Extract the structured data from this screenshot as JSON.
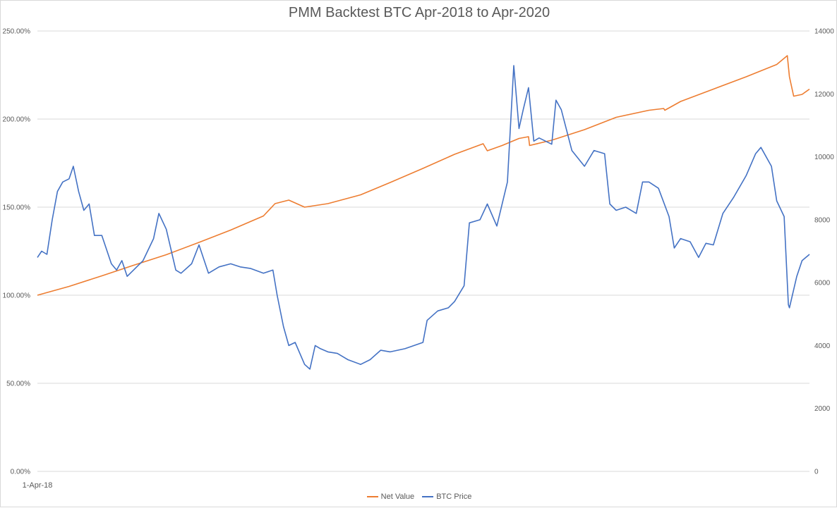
{
  "chart_data": {
    "type": "line",
    "title": "PMM Backtest BTC Apr-2018 to Apr-2020",
    "x_label_shown": "1-Apr-18",
    "x_range": [
      "2018-04-01",
      "2020-04-01"
    ],
    "y_left": {
      "range": [
        0,
        2.5
      ],
      "ticks": [
        "0.00%",
        "50.00%",
        "100.00%",
        "150.00%",
        "200.00%",
        "250.00%"
      ]
    },
    "y_right": {
      "range": [
        0,
        14000
      ],
      "ticks": [
        "0",
        "2000",
        "4000",
        "6000",
        "8000",
        "10000",
        "12000",
        "14000"
      ]
    },
    "grid": "horizontal",
    "legend": "bottom",
    "colors": {
      "net_value": "#ed7d31",
      "btc_price": "#4472c4"
    },
    "series": [
      {
        "name": "Net Value",
        "axis": "left",
        "x": [
          "2018-04-01",
          "2018-05-01",
          "2018-06-01",
          "2018-07-01",
          "2018-08-01",
          "2018-09-01",
          "2018-10-01",
          "2018-11-01",
          "2018-11-12",
          "2018-11-25",
          "2018-12-10",
          "2019-01-01",
          "2019-02-01",
          "2019-03-01",
          "2019-04-01",
          "2019-05-01",
          "2019-05-28",
          "2019-06-01",
          "2019-06-15",
          "2019-07-01",
          "2019-07-10",
          "2019-07-11",
          "2019-08-01",
          "2019-09-01",
          "2019-10-01",
          "2019-11-01",
          "2019-11-15",
          "2019-11-16",
          "2019-12-01",
          "2020-01-01",
          "2020-02-01",
          "2020-03-01",
          "2020-03-11",
          "2020-03-13",
          "2020-03-17",
          "2020-03-25",
          "2020-04-01"
        ],
        "values": [
          1.0,
          1.05,
          1.11,
          1.17,
          1.23,
          1.3,
          1.37,
          1.45,
          1.52,
          1.54,
          1.5,
          1.52,
          1.57,
          1.64,
          1.72,
          1.8,
          1.86,
          1.82,
          1.85,
          1.89,
          1.9,
          1.85,
          1.88,
          1.94,
          2.01,
          2.05,
          2.06,
          2.05,
          2.1,
          2.17,
          2.24,
          2.31,
          2.36,
          2.24,
          2.13,
          2.14,
          2.17
        ]
      },
      {
        "name": "BTC Price",
        "axis": "right",
        "x": [
          "2018-04-01",
          "2018-04-05",
          "2018-04-10",
          "2018-04-15",
          "2018-04-20",
          "2018-04-25",
          "2018-05-01",
          "2018-05-05",
          "2018-05-10",
          "2018-05-15",
          "2018-05-20",
          "2018-05-25",
          "2018-06-01",
          "2018-06-10",
          "2018-06-15",
          "2018-06-20",
          "2018-06-25",
          "2018-07-01",
          "2018-07-10",
          "2018-07-20",
          "2018-07-25",
          "2018-08-01",
          "2018-08-10",
          "2018-08-15",
          "2018-08-25",
          "2018-09-01",
          "2018-09-10",
          "2018-09-20",
          "2018-10-01",
          "2018-10-10",
          "2018-10-20",
          "2018-11-01",
          "2018-11-10",
          "2018-11-14",
          "2018-11-20",
          "2018-11-25",
          "2018-12-01",
          "2018-12-10",
          "2018-12-15",
          "2018-12-20",
          "2018-12-25",
          "2019-01-01",
          "2019-01-10",
          "2019-01-20",
          "2019-02-01",
          "2019-02-10",
          "2019-02-20",
          "2019-03-01",
          "2019-03-15",
          "2019-04-01",
          "2019-04-05",
          "2019-04-15",
          "2019-04-25",
          "2019-05-01",
          "2019-05-10",
          "2019-05-15",
          "2019-05-25",
          "2019-06-01",
          "2019-06-10",
          "2019-06-20",
          "2019-06-26",
          "2019-07-01",
          "2019-07-05",
          "2019-07-10",
          "2019-07-15",
          "2019-07-20",
          "2019-08-01",
          "2019-08-05",
          "2019-08-10",
          "2019-08-20",
          "2019-09-01",
          "2019-09-10",
          "2019-09-20",
          "2019-09-25",
          "2019-10-01",
          "2019-10-10",
          "2019-10-20",
          "2019-10-26",
          "2019-11-01",
          "2019-11-10",
          "2019-11-20",
          "2019-11-25",
          "2019-12-01",
          "2019-12-10",
          "2019-12-18",
          "2019-12-25",
          "2020-01-01",
          "2020-01-10",
          "2020-01-20",
          "2020-02-01",
          "2020-02-10",
          "2020-02-15",
          "2020-02-25",
          "2020-03-01",
          "2020-03-08",
          "2020-03-12",
          "2020-03-13",
          "2020-03-20",
          "2020-03-25",
          "2020-04-01"
        ],
        "values": [
          6800,
          7000,
          6900,
          8000,
          8900,
          9200,
          9300,
          9700,
          8900,
          8300,
          8500,
          7500,
          7500,
          6600,
          6400,
          6700,
          6200,
          6400,
          6700,
          7400,
          8200,
          7700,
          6400,
          6300,
          6600,
          7200,
          6300,
          6500,
          6600,
          6500,
          6450,
          6300,
          6400,
          5600,
          4600,
          4000,
          4100,
          3400,
          3250,
          4000,
          3900,
          3800,
          3750,
          3550,
          3400,
          3550,
          3850,
          3800,
          3900,
          4100,
          4800,
          5100,
          5200,
          5400,
          5900,
          7900,
          8000,
          8500,
          7800,
          9200,
          12900,
          10900,
          11500,
          12200,
          10500,
          10600,
          10400,
          11800,
          11500,
          10200,
          9700,
          10200,
          10100,
          8500,
          8300,
          8400,
          8200,
          9200,
          9200,
          9000,
          8100,
          7100,
          7400,
          7300,
          6800,
          7250,
          7200,
          8200,
          8700,
          9400,
          10100,
          10300,
          9700,
          8600,
          8100,
          5300,
          5200,
          6200,
          6700,
          6900
        ]
      }
    ]
  },
  "legend": {
    "net_value_label": "Net Value",
    "btc_price_label": "BTC Price"
  }
}
